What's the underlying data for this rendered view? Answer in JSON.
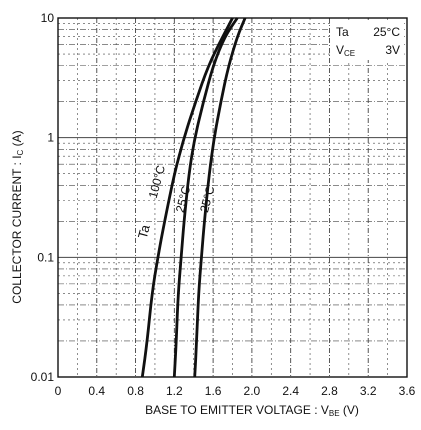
{
  "chart_data": {
    "type": "line",
    "title": "",
    "xlabel": "BASE TO EMITTER VOLTAGE : V",
    "xlabel_sub": "BE",
    "xlabel_unit": "(V)",
    "ylabel": "COLLECTOR CURRENT : I",
    "ylabel_sub": "C",
    "ylabel_unit": "(A)",
    "xlim": [
      0,
      3.6
    ],
    "ylim": [
      0.01,
      10
    ],
    "y_scale": "log",
    "grid": true,
    "x_ticks": [
      "0",
      "0.4",
      "0.8",
      "1.2",
      "1.6",
      "2.0",
      "2.4",
      "2.8",
      "3.2",
      "3.6"
    ],
    "y_ticks": [
      "0.01",
      "0.1",
      "1",
      "10"
    ],
    "conditions": [
      {
        "label": "Ta",
        "value": "25°C"
      },
      {
        "label": "V",
        "sub": "CE",
        "value": "3V"
      }
    ],
    "series": [
      {
        "name": "100°C",
        "x": [
          0.87,
          0.92,
          0.97,
          1.03,
          1.1,
          1.2,
          1.3,
          1.42,
          1.55,
          1.7,
          1.8
        ],
        "y": [
          0.01,
          0.02,
          0.05,
          0.1,
          0.2,
          0.5,
          1.0,
          2.0,
          4.0,
          7.0,
          10
        ]
      },
      {
        "name": "25°C",
        "x": [
          1.2,
          1.22,
          1.24,
          1.27,
          1.3,
          1.35,
          1.41,
          1.5,
          1.6,
          1.72,
          1.85
        ],
        "y": [
          0.01,
          0.02,
          0.05,
          0.1,
          0.2,
          0.5,
          1.0,
          2.0,
          4.0,
          7.0,
          10
        ]
      },
      {
        "name": "25°C",
        "x": [
          1.41,
          1.43,
          1.45,
          1.48,
          1.51,
          1.56,
          1.61,
          1.68,
          1.76,
          1.85,
          1.93
        ],
        "y": [
          0.01,
          0.02,
          0.05,
          0.1,
          0.2,
          0.5,
          1.0,
          2.0,
          4.0,
          7.0,
          10
        ]
      }
    ],
    "family_label": "Ta",
    "colors": {
      "line": "#111111",
      "grid": "#444444",
      "background": "#ffffff"
    }
  }
}
